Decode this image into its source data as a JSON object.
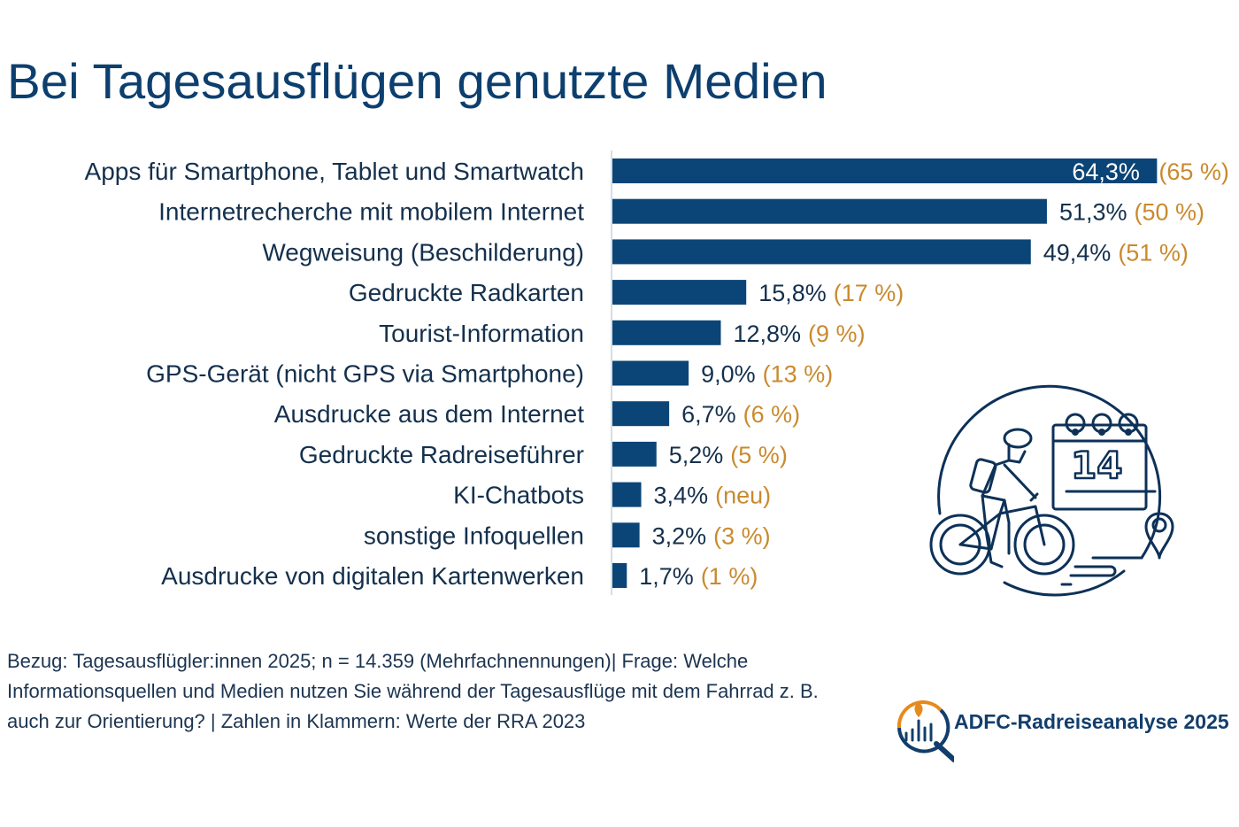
{
  "page": {
    "title": "Bei Tagesausflügen genutzte Medien",
    "footnote": "Bezug: Tagesausflügler:innen 2025; n = 14.359 (Mehrfachnennungen)| Frage: Welche Informationsquellen und Medien nutzen Sie während der Tagesausflüge mit dem Fahrrad z. B. auch zur Orientierung? | Zahlen in Klammern: Werte der RRA 2023",
    "logo_text": "ADFC-Radreiseanalyse 2025",
    "illustration_calendar_day": "14",
    "colors": {
      "bar": "#0b4577",
      "title": "#0d3f6e",
      "value_text": "#14304d",
      "previous_value_text": "#c98a2e",
      "logo_orange": "#e8891d",
      "logo_blue": "#123e6b"
    }
  },
  "chart_data": {
    "type": "bar",
    "orientation": "horizontal",
    "title": "Bei Tagesausflügen genutzte Medien",
    "xlabel": "",
    "ylabel": "",
    "unit": "%",
    "grid": false,
    "categories": [
      "Apps für Smartphone, Tablet und Smartwatch",
      "Internetrecherche mit mobilem Internet",
      "Wegweisung (Beschilderung)",
      "Gedruckte Radkarten",
      "Tourist-Information",
      "GPS-Gerät (nicht GPS via Smartphone)",
      "Ausdrucke aus dem Internet",
      "Gedruckte Radreiseführer",
      "KI-Chatbots",
      "sonstige Infoquellen",
      "Ausdrucke von digitalen Kartenwerken"
    ],
    "series": [
      {
        "name": "RRA 2025",
        "values": [
          64.3,
          51.3,
          49.4,
          15.8,
          12.8,
          9.0,
          6.7,
          5.2,
          3.4,
          3.2,
          1.7
        ],
        "labels": [
          "64,3%",
          "51,3%",
          "49,4%",
          "15,8%",
          "12,8%",
          "9,0%",
          "6,7%",
          "5,2%",
          "3,4%",
          "3,2%",
          "1,7%"
        ]
      },
      {
        "name": "RRA 2023 (in Klammern)",
        "values": [
          65,
          50,
          51,
          17,
          9,
          13,
          6,
          5,
          null,
          3,
          1
        ],
        "labels": [
          "(65 %)",
          "(50 %)",
          "(51 %)",
          "(17 %)",
          "(9 %)",
          "(13 %)",
          "(6 %)",
          "(5 %)",
          "(neu)",
          "(3 %)",
          "(1 %)"
        ]
      }
    ],
    "xlim": [
      0,
      70
    ]
  }
}
